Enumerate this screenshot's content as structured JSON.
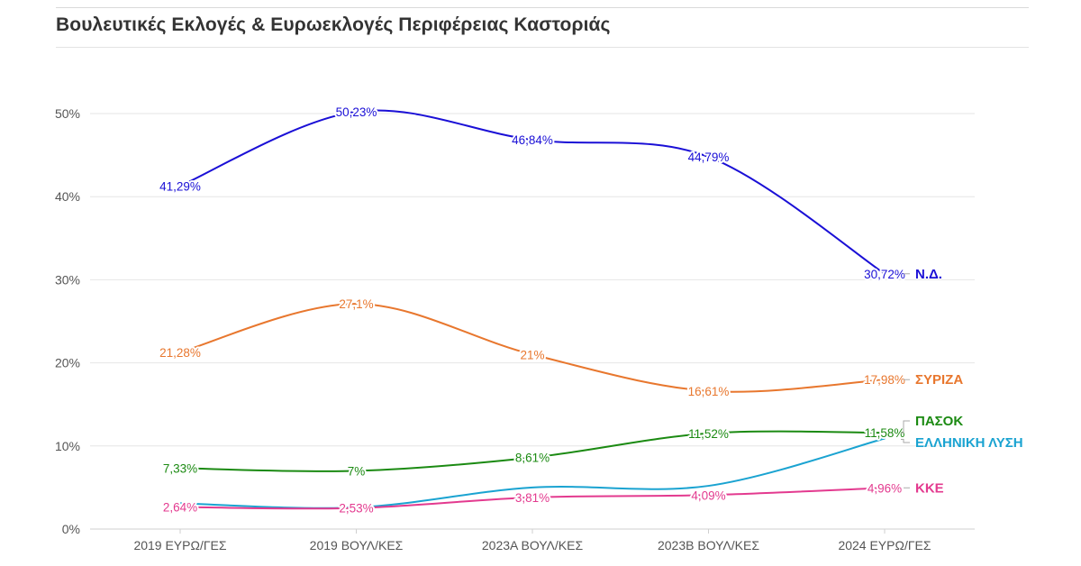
{
  "title": "Βουλευτικές Εκλογές & Ευρωεκλογές Περιφέρειας Καστοριάς",
  "chart_data": {
    "type": "line",
    "title": "Βουλευτικές Εκλογές & Ευρωεκλογές Περιφέρειας Καστοριάς",
    "xlabel": "",
    "ylabel": "",
    "categories": [
      "2019 ΕΥΡΩ/ΓΕΣ",
      "2019 ΒΟΥΛ/ΚΕΣ",
      "2023Α ΒΟΥΛ/ΚΕΣ",
      "2023Β ΒΟΥΛ/ΚΕΣ",
      "2024 ΕΥΡΩ/ΓΕΣ"
    ],
    "ylim": [
      0,
      55
    ],
    "yticks": [
      0,
      10,
      20,
      30,
      40,
      50
    ],
    "ytick_labels": [
      "0%",
      "10%",
      "20%",
      "30%",
      "40%",
      "50%"
    ],
    "grid": true,
    "legend": "end-of-line labels, right",
    "series": [
      {
        "name": "Ν.Δ.",
        "color": "#1a0fd6",
        "values": [
          41.29,
          50.23,
          46.84,
          44.79,
          30.72
        ],
        "labels": [
          "41,29%",
          "50,23%",
          "46,84%",
          "44,79%",
          "30,72%"
        ]
      },
      {
        "name": "ΣΥΡΙΖΑ",
        "color": "#e8772e",
        "values": [
          21.28,
          27.1,
          21,
          16.61,
          17.98
        ],
        "labels": [
          "21,28%",
          "27,1%",
          "21%",
          "16,61%",
          "17,98%"
        ]
      },
      {
        "name": "ΠΑΣΟΚ",
        "color": "#1b8a12",
        "values": [
          7.33,
          7,
          8.61,
          11.52,
          11.58
        ],
        "labels": [
          "7,33%",
          "7%",
          "8,61%",
          "11,52%",
          "11,58%"
        ]
      },
      {
        "name": "ΕΛΛΗΝΙΚΗ ΛΥΣΗ",
        "color": "#1aa3d1",
        "values": [
          3.1,
          2.6,
          5.0,
          5.2,
          10.9
        ],
        "labels": [
          "",
          "",
          "",
          "",
          ""
        ]
      },
      {
        "name": "ΚΚΕ",
        "color": "#e33a8f",
        "values": [
          2.64,
          2.53,
          3.81,
          4.09,
          4.96
        ],
        "labels": [
          "2,64%",
          "2,53%",
          "3,81%",
          "4,09%",
          "4,96%"
        ]
      }
    ]
  }
}
